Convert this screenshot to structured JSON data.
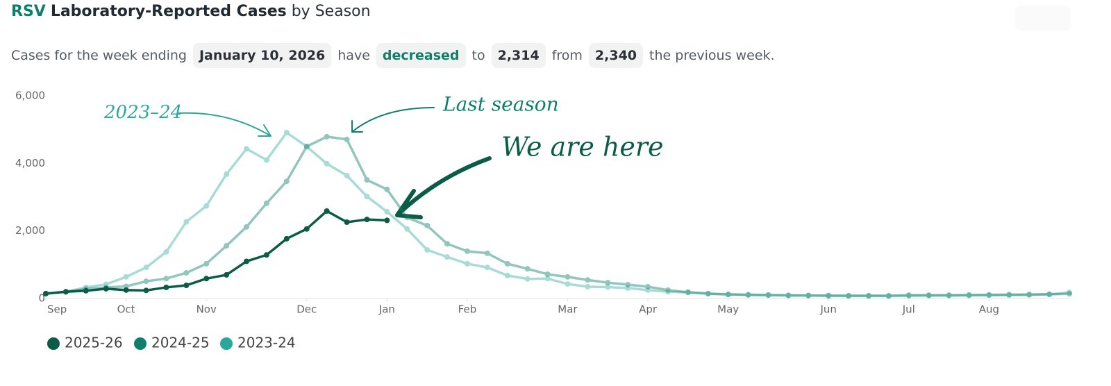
{
  "chart_data": {
    "type": "line",
    "title": {
      "highlight": "RSV",
      "main": "Laboratory-Reported Cases",
      "suffix": "by Season"
    },
    "summary": [
      "Cases for the week ending",
      "January 10, 2026",
      "have",
      "decreased",
      "to",
      "2,314",
      "from",
      "2,340",
      "the previous week."
    ],
    "annotations": [
      "2023–24",
      "Last season",
      "We are here"
    ],
    "x": [
      0,
      1,
      2,
      3,
      4,
      5,
      6,
      7,
      8,
      9,
      10,
      11,
      12,
      13,
      14,
      15,
      16,
      17,
      18,
      19,
      20,
      21,
      22,
      23,
      24,
      25,
      26,
      27,
      28,
      29,
      30,
      31,
      32,
      33,
      34,
      35,
      36,
      37,
      38,
      39,
      40,
      41,
      42,
      43,
      44,
      45,
      46,
      47,
      48,
      49,
      50,
      51
    ],
    "xlim": [
      0,
      51
    ],
    "xticks": [
      {
        "value": 0,
        "label": "Sep"
      },
      {
        "value": 4,
        "label": "Oct"
      },
      {
        "value": 8,
        "label": "Nov"
      },
      {
        "value": 13,
        "label": "Dec"
      },
      {
        "value": 17,
        "label": "Jan"
      },
      {
        "value": 21,
        "label": "Feb"
      },
      {
        "value": 26,
        "label": "Mar"
      },
      {
        "value": 30,
        "label": "Apr"
      },
      {
        "value": 34,
        "label": "May"
      },
      {
        "value": 39,
        "label": "Jun"
      },
      {
        "value": 43,
        "label": "Jul"
      },
      {
        "value": 47,
        "label": "Aug"
      }
    ],
    "ylim": [
      0,
      6000
    ],
    "yticks": [
      0,
      {
        "value": 2000,
        "label": "2,000"
      },
      {
        "value": 4000,
        "label": "4,000"
      },
      {
        "value": 6000,
        "label": "6,000"
      }
    ],
    "series": [
      {
        "name": "2025-26",
        "color": "#0b5c46",
        "values": [
          145,
          200,
          230,
          290,
          250,
          240,
          330,
          390,
          590,
          700,
          1100,
          1290,
          1770,
          2060,
          2590,
          2260,
          2340,
          2314,
          null,
          null,
          null,
          null,
          null,
          null,
          null,
          null,
          null,
          null,
          null,
          null,
          null,
          null,
          null,
          null,
          null,
          null,
          null,
          null,
          null,
          null,
          null,
          null,
          null,
          null,
          null,
          null,
          null,
          null,
          null,
          null,
          null,
          null
        ]
      },
      {
        "name": "2024-25",
        "color": "#0f7f6a",
        "values": [
          150,
          200,
          280,
          330,
          360,
          510,
          590,
          760,
          1030,
          1560,
          2120,
          2820,
          3470,
          4500,
          4790,
          4710,
          3510,
          3230,
          2400,
          2160,
          1620,
          1400,
          1340,
          1030,
          880,
          720,
          640,
          550,
          470,
          410,
          350,
          250,
          185,
          145,
          120,
          105,
          100,
          95,
          90,
          90,
          85,
          85,
          85,
          100,
          100,
          100,
          105,
          110,
          115,
          120,
          125,
          140
        ]
      },
      {
        "name": "2023-24",
        "color": "#2aa69a",
        "values": [
          140,
          200,
          330,
          420,
          640,
          920,
          1380,
          2270,
          2740,
          3680,
          4430,
          4100,
          4910,
          4500,
          3990,
          3640,
          3020,
          2570,
          2060,
          1440,
          1230,
          1030,
          920,
          680,
          580,
          590,
          430,
          350,
          340,
          310,
          250,
          200,
          185,
          145,
          125,
          115,
          105,
          90,
          90,
          75,
          75,
          75,
          70,
          80,
          85,
          85,
          90,
          95,
          100,
          105,
          125,
          180
        ]
      }
    ]
  }
}
